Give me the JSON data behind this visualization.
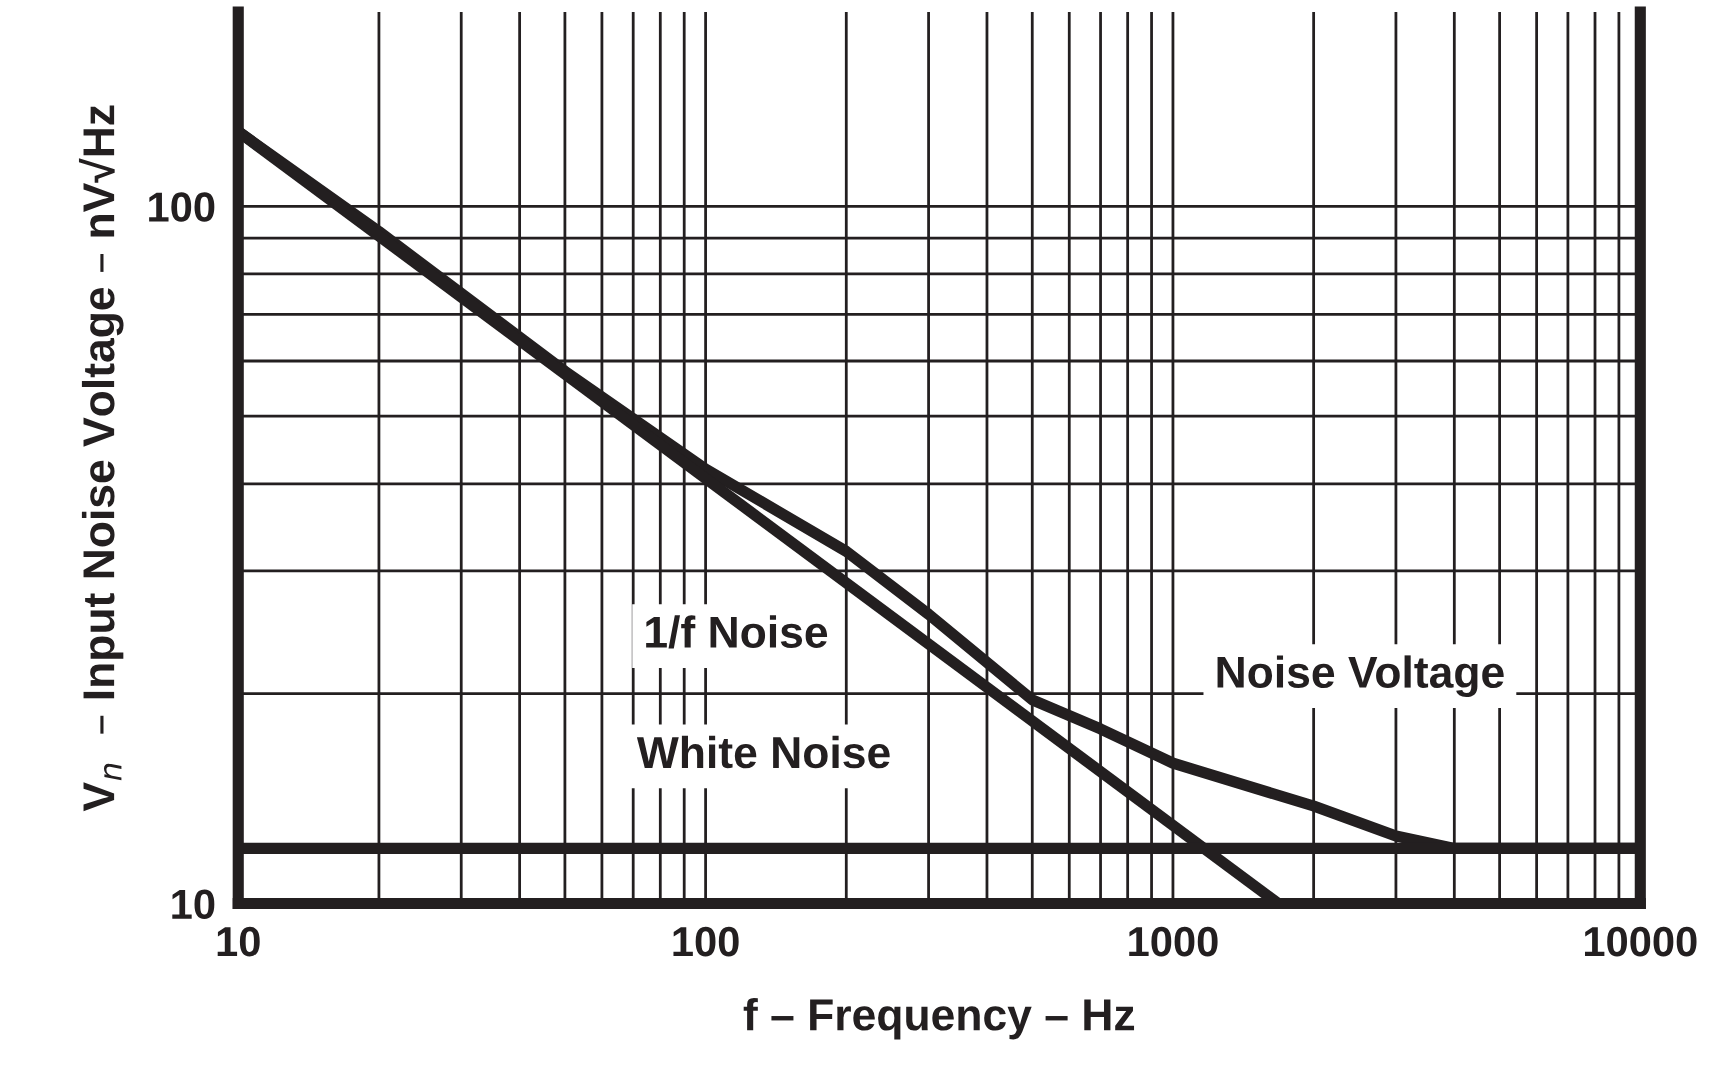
{
  "chart_data": {
    "type": "line",
    "xlabel": "f – Frequency – Hz",
    "ylabel": "V$_{n}$  – Input Noise Voltage – nV√Hz",
    "log": "xy",
    "grid": true,
    "legend": false,
    "marker": "none",
    "line_style": "solid",
    "xlim": [
      10,
      10000
    ],
    "ylim": [
      10,
      190
    ],
    "xticks": [
      10,
      {
        "value": 20,
        "label": null
      },
      {
        "value": 30,
        "label": null
      },
      {
        "value": 40,
        "label": null
      },
      {
        "value": 50,
        "label": null
      },
      {
        "value": 60,
        "label": null
      },
      {
        "value": 70,
        "label": null
      },
      {
        "value": 80,
        "label": null
      },
      {
        "value": 90,
        "label": null
      },
      100,
      {
        "value": 200,
        "label": null
      },
      {
        "value": 300,
        "label": null
      },
      {
        "value": 400,
        "label": null
      },
      {
        "value": 500,
        "label": null
      },
      {
        "value": 600,
        "label": null
      },
      {
        "value": 700,
        "label": null
      },
      {
        "value": 800,
        "label": null
      },
      {
        "value": 900,
        "label": null
      },
      1000,
      {
        "value": 2000,
        "label": null
      },
      {
        "value": 3000,
        "label": null
      },
      {
        "value": 4000,
        "label": null
      },
      {
        "value": 5000,
        "label": null
      },
      {
        "value": 6000,
        "label": null
      },
      {
        "value": 7000,
        "label": null
      },
      {
        "value": 8000,
        "label": null
      },
      {
        "value": 9000,
        "label": null
      },
      10000
    ],
    "yticks": [
      10,
      {
        "value": 20,
        "label": null
      },
      {
        "value": 30,
        "label": null
      },
      {
        "value": 40,
        "label": null
      },
      {
        "value": 50,
        "label": null
      },
      {
        "value": 60,
        "label": null
      },
      {
        "value": 70,
        "label": null
      },
      {
        "value": 80,
        "label": null
      },
      {
        "value": 90,
        "label": null
      },
      100
    ],
    "series": [
      {
        "name": "Noise Voltage",
        "color": "#231f20",
        "x": [
          10,
          20,
          50,
          100,
          200,
          300,
          500,
          700,
          1000,
          2000,
          3000,
          4000,
          10000
        ],
        "values": [
          128,
          92,
          58,
          42,
          32,
          26,
          19.6,
          17.8,
          15.9,
          13.8,
          12.5,
          12,
          12
        ]
      },
      {
        "name": "1/f Noise",
        "color": "#231f20",
        "x": [
          10,
          1680
        ],
        "values": [
          128,
          10
        ]
      },
      {
        "name": "White Noise",
        "color": "#231f20",
        "x": [
          10,
          10000
        ],
        "values": [
          12,
          12
        ]
      }
    ]
  }
}
